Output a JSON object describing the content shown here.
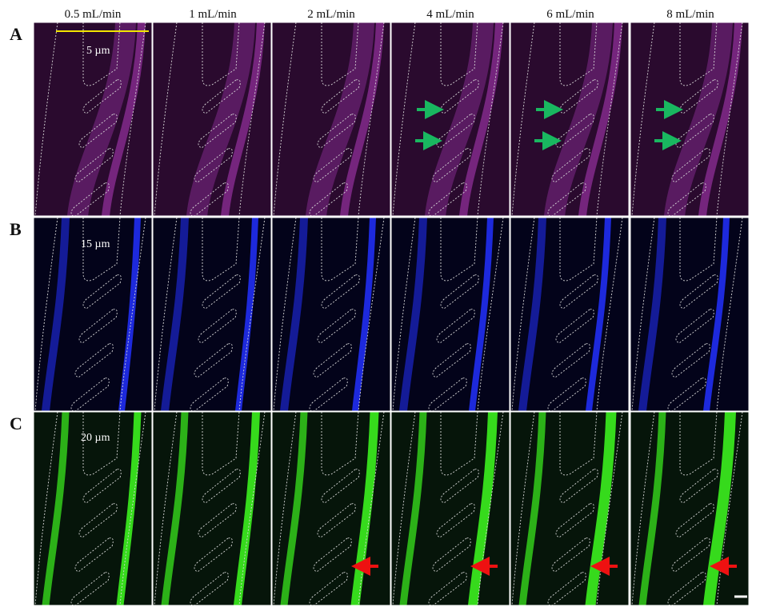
{
  "figure": {
    "columns": [
      "0.5 mL/min",
      "1 mL/min",
      "2 mL/min",
      "4 mL/min",
      "6 mL/min",
      "8 mL/min"
    ],
    "rows": [
      {
        "letter": "A",
        "size": "5 µm",
        "color": "#b23cc0",
        "dark": "#2a0a2e"
      },
      {
        "letter": "B",
        "size": "15 µm",
        "color": "#2230ff",
        "dark": "#03031a"
      },
      {
        "letter": "C",
        "size": "20 µm",
        "color": "#39e51e",
        "dark": "#06150a"
      }
    ],
    "scale_bar_color": "#f2e600",
    "arrow_colors": {
      "green": "#19b760",
      "red": "#ee1111"
    },
    "outline_color": "#d8d8d8"
  }
}
